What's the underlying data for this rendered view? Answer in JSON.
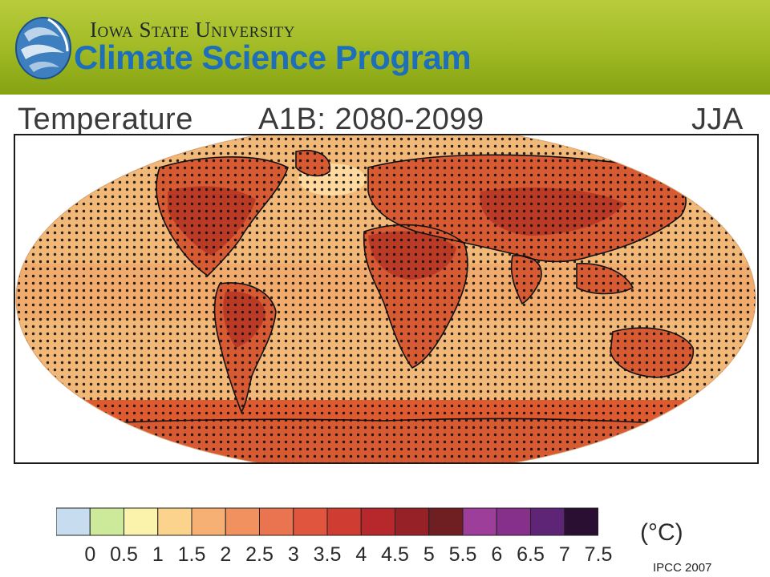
{
  "header": {
    "university": "Iowa State University",
    "program": "Climate Science Program",
    "colors": {
      "banner": "#9fb923",
      "program_text": "#1d6fbb",
      "emblem": "#2b7fc0"
    }
  },
  "map": {
    "variable": "Temperature",
    "scenario": "A1B: 2080-2099",
    "season": "JJA",
    "projection": "robinson-like oval world map",
    "stippling": "dots indicate significance",
    "colors": {
      "ocean_background": "#f2b878",
      "mid_ocean": "#f0a062",
      "land_warm": "#d85a32",
      "land_hot": "#bb3a26",
      "southern_band": "#e05a30",
      "arctic_cool": "#ffd9a0"
    }
  },
  "legend": {
    "units": "(°C)",
    "ticks": [
      "0",
      "0.5",
      "1",
      "1.5",
      "2",
      "2.5",
      "3",
      "3.5",
      "4",
      "4.5",
      "5",
      "5.5",
      "6",
      "6.5",
      "7",
      "7.5"
    ],
    "bins": [
      "#c7dcee",
      "#cde99a",
      "#fbf3ac",
      "#fbd38c",
      "#f7b074",
      "#f29160",
      "#eb7450",
      "#e0553d",
      "#cf3c32",
      "#b7282c",
      "#962228",
      "#6f1f22",
      "#9c3e9a",
      "#862f8b",
      "#5e2576",
      "#2a0f33"
    ]
  },
  "source": "IPCC 2007"
}
